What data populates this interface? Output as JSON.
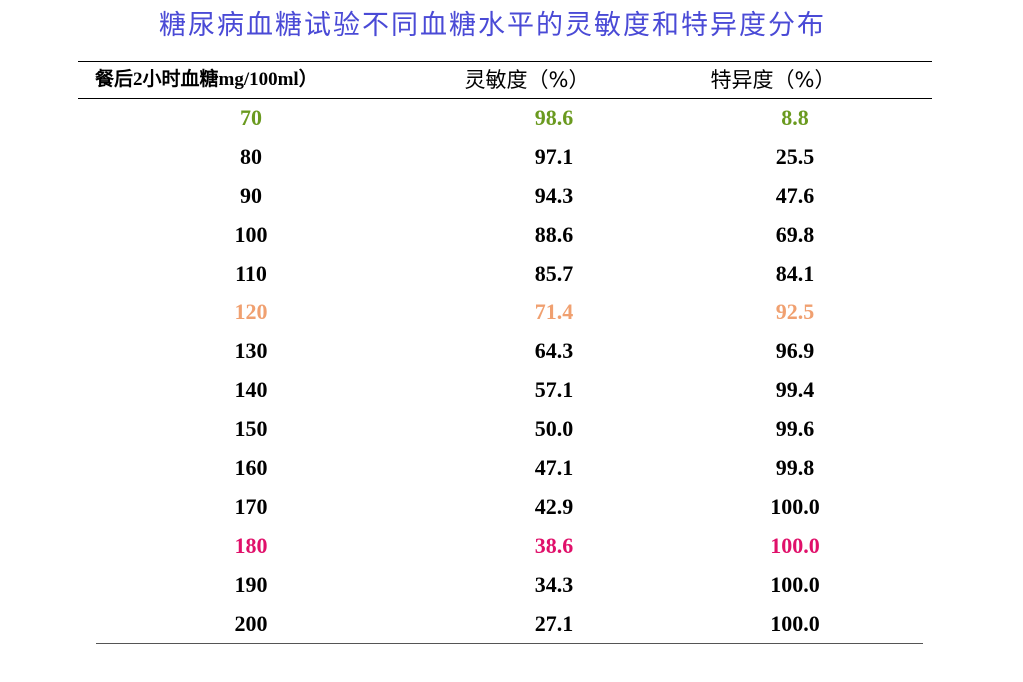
{
  "title": "糖尿病血糖试验不同血糖水平的灵敏度和特异度分布",
  "headers": {
    "glucose": "餐后2小时血糖mg/100ml）",
    "sensitivity": "灵敏度（%）",
    "specificity": "特异度（%）"
  },
  "colors": {
    "title": "#4a4ad6",
    "default": "#000000",
    "green": "#6a9a1f",
    "orange": "#f0a070",
    "magenta": "#e0106a"
  },
  "rows": [
    {
      "glucose": "70",
      "sensitivity": "98.6",
      "specificity": "8.8",
      "color": "#6a9a1f"
    },
    {
      "glucose": "80",
      "sensitivity": "97.1",
      "specificity": "25.5",
      "color": "#000000"
    },
    {
      "glucose": "90",
      "sensitivity": "94.3",
      "specificity": "47.6",
      "color": "#000000"
    },
    {
      "glucose": "100",
      "sensitivity": "88.6",
      "specificity": "69.8",
      "color": "#000000"
    },
    {
      "glucose": "110",
      "sensitivity": "85.7",
      "specificity": "84.1",
      "color": "#000000"
    },
    {
      "glucose": "120",
      "sensitivity": "71.4",
      "specificity": "92.5",
      "color": "#f0a070"
    },
    {
      "glucose": "130",
      "sensitivity": "64.3",
      "specificity": "96.9",
      "color": "#000000"
    },
    {
      "glucose": "140",
      "sensitivity": "57.1",
      "specificity": "99.4",
      "color": "#000000"
    },
    {
      "glucose": "150",
      "sensitivity": "50.0",
      "specificity": "99.6",
      "color": "#000000"
    },
    {
      "glucose": "160",
      "sensitivity": "47.1",
      "specificity": "99.8",
      "color": "#000000"
    },
    {
      "glucose": "170",
      "sensitivity": "42.9",
      "specificity": "100.0",
      "color": "#000000"
    },
    {
      "glucose": "180",
      "sensitivity": "38.6",
      "specificity": "100.0",
      "color": "#e0106a"
    },
    {
      "glucose": "190",
      "sensitivity": "34.3",
      "specificity": "100.0",
      "color": "#000000"
    },
    {
      "glucose": "200",
      "sensitivity": "27.1",
      "specificity": "100.0",
      "color": "#000000"
    }
  ]
}
